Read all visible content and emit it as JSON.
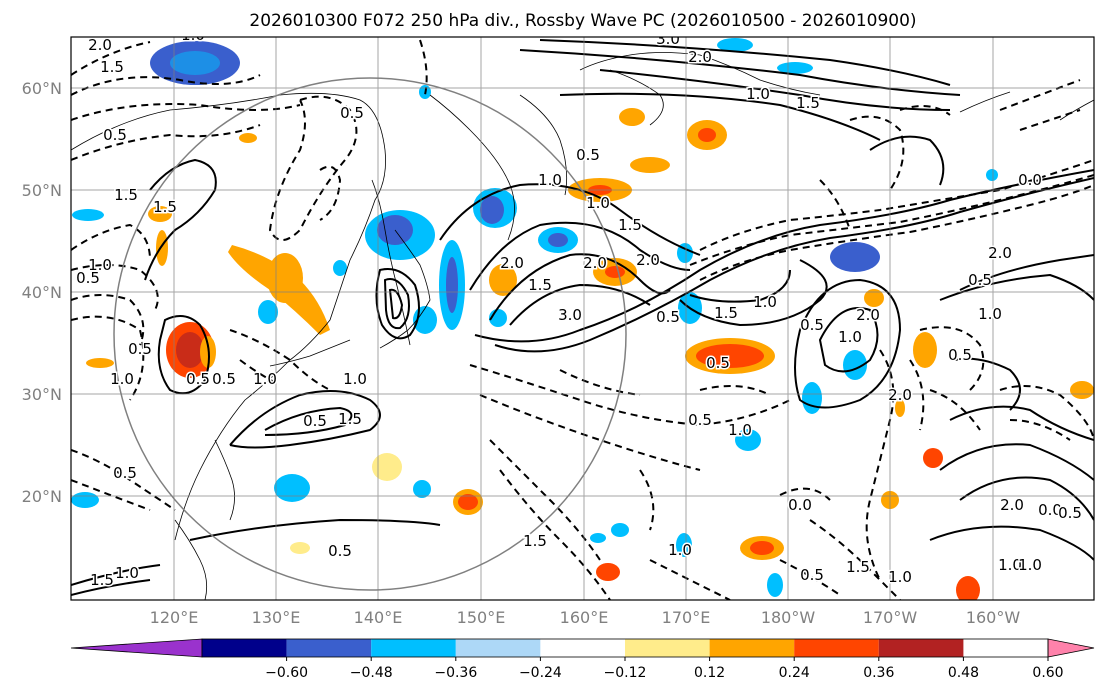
{
  "title": "2026010300 F072 250 hPa div., Rossby Wave PC (2026010500 - 2026010900)",
  "lon_labels": [
    "120°E",
    "130°E",
    "140°E",
    "150°E",
    "160°E",
    "170°E",
    "180°W",
    "170°W",
    "160°W"
  ],
  "lat_labels": [
    "60°N",
    "50°N",
    "40°N",
    "30°N",
    "20°N"
  ],
  "colorbar": {
    "ticks": [
      "−0.60",
      "−0.48",
      "−0.36",
      "−0.24",
      "−0.12",
      "0.12",
      "0.24",
      "0.36",
      "0.48",
      "0.60"
    ],
    "colors": [
      "#9a32cd",
      "#00008b",
      "#3a5fcd",
      "#00bfff",
      "#add8f7",
      "#ffffff",
      "#ffec8b",
      "#ffa500",
      "#ff4500",
      "#b22222",
      "#ff82ab"
    ]
  },
  "contour_labels": [
    "2.0",
    "1.5",
    "1.0",
    "0.5",
    "3.0",
    "2.0",
    "1.0",
    "1.5",
    "0.5",
    "1.5",
    "1.5",
    "1.0",
    "0.5",
    "0.5",
    "1.0",
    "2.0",
    "1.5",
    "2.0",
    "3.0",
    "1.0",
    "2.0",
    "1.5",
    "0.5",
    "1.5",
    "1.0",
    "0.5",
    "0.5",
    "1.0",
    "2.0",
    "2.0",
    "0.5",
    "1.0",
    "0.5",
    "2.0",
    "0.0",
    "0.5",
    "1.0",
    "1.5",
    "1.0",
    "0.5",
    "1.5",
    "1.0",
    "0.5",
    "0.5",
    "0.5",
    "1.0",
    "0.5",
    "1.5",
    "1.0",
    "0.5",
    "1.0",
    "0.0",
    "0.5",
    "1.5",
    "1.0",
    "2.0",
    "0.0",
    "0.5",
    "1.0",
    "1.0"
  ]
}
